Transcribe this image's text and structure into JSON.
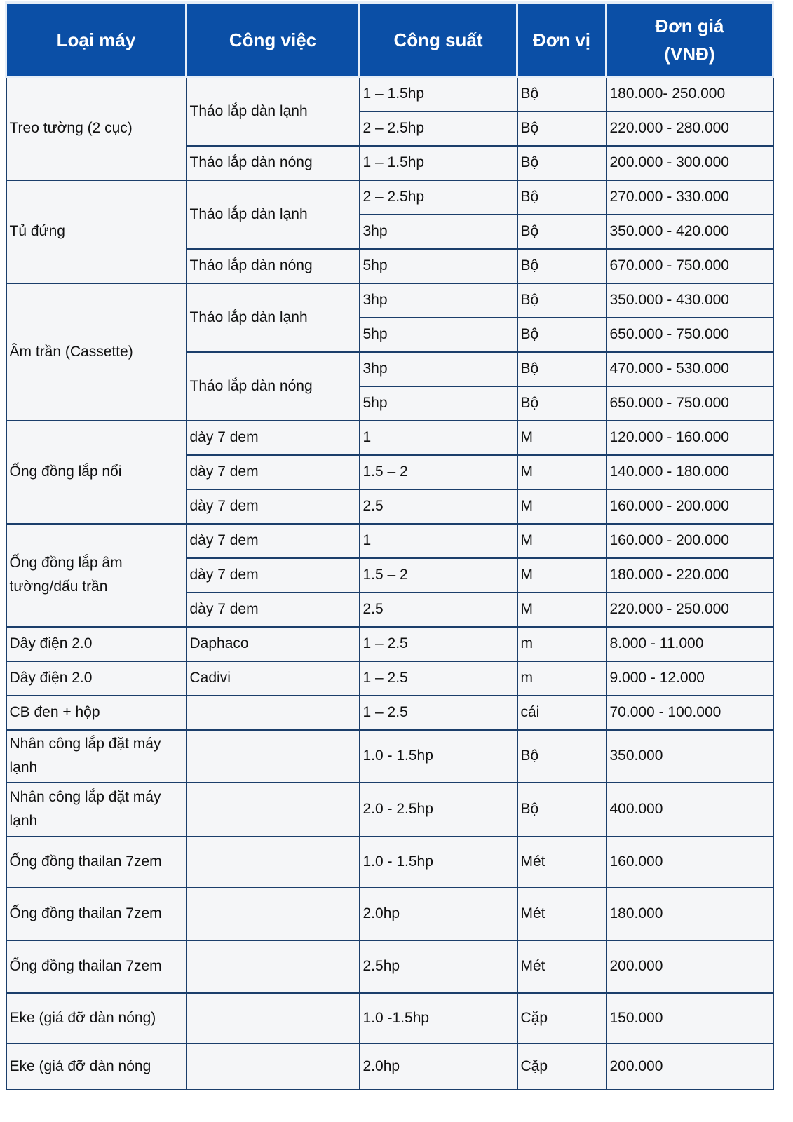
{
  "header": {
    "loai_may": "Loại máy",
    "cong_viec": "Công việc",
    "cong_suat": "Công suất",
    "don_vi": "Đơn vị",
    "don_gia": "Đơn giá (VNĐ)"
  },
  "colors": {
    "header_bg": "#0b4fa6",
    "cell_bg": "#f5f6f8",
    "border": "#1b3e6b"
  },
  "groups": [
    {
      "loai": "Treo tường (2 cục)",
      "jobs": [
        {
          "label": "Tháo lắp dàn lạnh",
          "rows": [
            {
              "cong_suat": "1 – 1.5hp",
              "don_vi": "Bộ",
              "don_gia": "180.000- 250.000"
            },
            {
              "cong_suat": "2 – 2.5hp",
              "don_vi": "Bộ",
              "don_gia": "220.000 - 280.000"
            }
          ]
        },
        {
          "label": "Tháo lắp dàn nóng",
          "rows": [
            {
              "cong_suat": "1 – 1.5hp",
              "don_vi": "Bộ",
              "don_gia": "200.000 - 300.000"
            }
          ]
        }
      ]
    },
    {
      "loai": "Tủ đứng",
      "jobs": [
        {
          "label": "Tháo lắp dàn lạnh",
          "rows": [
            {
              "cong_suat": "2 – 2.5hp",
              "don_vi": "Bộ",
              "don_gia": "270.000 - 330.000"
            },
            {
              "cong_suat": "3hp",
              "don_vi": "Bộ",
              "don_gia": "350.000 - 420.000"
            }
          ]
        },
        {
          "label": "Tháo lắp dàn nóng",
          "rows": [
            {
              "cong_suat": "5hp",
              "don_vi": "Bộ",
              "don_gia": "670.000 - 750.000"
            }
          ]
        }
      ]
    },
    {
      "loai": "Âm trần (Cassette)",
      "jobs": [
        {
          "label": "Tháo lắp dàn lạnh",
          "rows": [
            {
              "cong_suat": "3hp",
              "don_vi": "Bộ",
              "don_gia": "350.000 - 430.000"
            },
            {
              "cong_suat": "5hp",
              "don_vi": "Bộ",
              "don_gia": "650.000 - 750.000"
            }
          ]
        },
        {
          "label": "Tháo lắp dàn nóng",
          "rows": [
            {
              "cong_suat": "3hp",
              "don_vi": "Bộ",
              "don_gia": "470.000 - 530.000"
            },
            {
              "cong_suat": "5hp",
              "don_vi": "Bộ",
              "don_gia": "650.000 - 750.000"
            }
          ]
        }
      ]
    },
    {
      "loai": "Ống đồng lắp nổi",
      "jobs": [
        {
          "label": "dày 7 dem",
          "rows": [
            {
              "cong_suat": "1",
              "don_vi": "M",
              "don_gia": "120.000 - 160.000"
            }
          ]
        },
        {
          "label": "dày 7 dem",
          "rows": [
            {
              "cong_suat": "1.5 – 2",
              "don_vi": "M",
              "don_gia": "140.000 - 180.000"
            }
          ]
        },
        {
          "label": "dày 7 dem",
          "rows": [
            {
              "cong_suat": "2.5",
              "don_vi": "M",
              "don_gia": "160.000 - 200.000"
            }
          ]
        }
      ]
    },
    {
      "loai": "Ống đồng lắp âm tường/dấu trần",
      "jobs": [
        {
          "label": "dày 7 dem",
          "rows": [
            {
              "cong_suat": "1",
              "don_vi": "M",
              "don_gia": "160.000 - 200.000"
            }
          ]
        },
        {
          "label": "dày 7 dem",
          "rows": [
            {
              "cong_suat": "1.5 – 2",
              "don_vi": "M",
              "don_gia": "180.000 - 220.000"
            }
          ]
        },
        {
          "label": "dày 7 dem",
          "rows": [
            {
              "cong_suat": "2.5",
              "don_vi": "M",
              "don_gia": "220.000 - 250.000"
            }
          ]
        }
      ]
    },
    {
      "loai": "Dây điện 2.0",
      "jobs": [
        {
          "label": "Daphaco",
          "rows": [
            {
              "cong_suat": "1 – 2.5",
              "don_vi": "m",
              "don_gia": "8.000 - 11.000"
            }
          ]
        }
      ]
    },
    {
      "loai": "Dây điện 2.0",
      "jobs": [
        {
          "label": "Cadivi",
          "rows": [
            {
              "cong_suat": "1 – 2.5",
              "don_vi": "m",
              "don_gia": "9.000 - 12.000"
            }
          ]
        }
      ]
    },
    {
      "loai": "CB đen + hộp",
      "jobs": [
        {
          "label": "",
          "rows": [
            {
              "cong_suat": "1 – 2.5",
              "don_vi": "cái",
              "don_gia": "70.000 - 100.000"
            }
          ]
        }
      ]
    },
    {
      "loai": "Nhân công lắp đặt máy lạnh",
      "jobs": [
        {
          "label": "",
          "rows": [
            {
              "cong_suat": "1.0 - 1.5hp",
              "don_vi": "Bộ",
              "don_gia": "350.000"
            }
          ]
        }
      ]
    },
    {
      "loai": "Nhân công lắp đặt máy lạnh",
      "jobs": [
        {
          "label": "",
          "rows": [
            {
              "cong_suat": "2.0 - 2.5hp",
              "don_vi": "Bộ",
              "don_gia": "400.000"
            }
          ]
        }
      ]
    },
    {
      "loai": "Ống đồng thailan 7zem",
      "jobs": [
        {
          "label": "",
          "rows": [
            {
              "cong_suat": "1.0 - 1.5hp",
              "don_vi": "Mét",
              "don_gia": "160.000"
            }
          ]
        }
      ]
    },
    {
      "loai": "Ống đồng thailan 7zem",
      "jobs": [
        {
          "label": "",
          "rows": [
            {
              "cong_suat": "2.0hp",
              "don_vi": "Mét",
              "don_gia": "180.000"
            }
          ]
        }
      ]
    },
    {
      "loai": "Ống đồng thailan 7zem",
      "jobs": [
        {
          "label": "",
          "rows": [
            {
              "cong_suat": "2.5hp",
              "don_vi": "Mét",
              "don_gia": "200.000"
            }
          ]
        }
      ]
    },
    {
      "loai": "Eke (giá đỡ dàn nóng)",
      "jobs": [
        {
          "label": "",
          "rows": [
            {
              "cong_suat": "1.0 -1.5hp",
              "don_vi": "Cặp",
              "don_gia": "150.000"
            }
          ]
        }
      ]
    },
    {
      "loai": "Eke (giá đỡ dàn nóng",
      "jobs": [
        {
          "label": "",
          "rows": [
            {
              "cong_suat": "2.0hp",
              "don_vi": "Cặp",
              "don_gia": "200.000"
            }
          ]
        }
      ]
    }
  ]
}
